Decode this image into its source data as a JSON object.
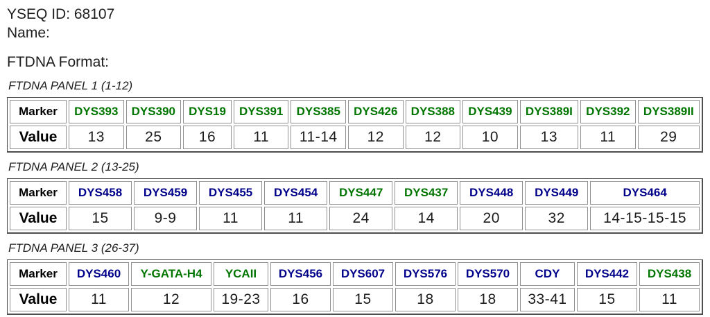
{
  "page": {
    "yseq_id": "YSEQ ID: 68107",
    "name": "Name:",
    "format_heading": "FTDNA Format:"
  },
  "table_headers": {
    "marker": "Marker",
    "value": "Value"
  },
  "colors": {
    "green_marker": "#007500",
    "blue_marker": "#00008B",
    "text": "#1e1e1e"
  },
  "panels": [
    {
      "title": "FTDNA PANEL 1 (1-12)",
      "markers": [
        {
          "name": "DYS393",
          "value": "13",
          "color": "green"
        },
        {
          "name": "DYS390",
          "value": "25",
          "color": "green"
        },
        {
          "name": "DYS19",
          "value": "16",
          "color": "green"
        },
        {
          "name": "DYS391",
          "value": "11",
          "color": "green"
        },
        {
          "name": "DYS385",
          "value": "11-14",
          "color": "green"
        },
        {
          "name": "DYS426",
          "value": "12",
          "color": "green"
        },
        {
          "name": "DYS388",
          "value": "12",
          "color": "green"
        },
        {
          "name": "DYS439",
          "value": "10",
          "color": "green"
        },
        {
          "name": "DYS389I",
          "value": "13",
          "color": "green"
        },
        {
          "name": "DYS392",
          "value": "11",
          "color": "green"
        },
        {
          "name": "DYS389II",
          "value": "29",
          "color": "green"
        }
      ]
    },
    {
      "title": "FTDNA PANEL 2 (13-25)",
      "markers": [
        {
          "name": "DYS458",
          "value": "15",
          "color": "blue"
        },
        {
          "name": "DYS459",
          "value": "9-9",
          "color": "blue"
        },
        {
          "name": "DYS455",
          "value": "11",
          "color": "blue"
        },
        {
          "name": "DYS454",
          "value": "11",
          "color": "blue"
        },
        {
          "name": "DYS447",
          "value": "24",
          "color": "green"
        },
        {
          "name": "DYS437",
          "value": "14",
          "color": "green"
        },
        {
          "name": "DYS448",
          "value": "20",
          "color": "blue"
        },
        {
          "name": "DYS449",
          "value": "32",
          "color": "blue"
        },
        {
          "name": "DYS464",
          "value": "14-15-15-15",
          "color": "blue"
        }
      ]
    },
    {
      "title": "FTDNA PANEL 3 (26-37)",
      "markers": [
        {
          "name": "DYS460",
          "value": "11",
          "color": "blue"
        },
        {
          "name": "Y-GATA-H4",
          "value": "12",
          "color": "green"
        },
        {
          "name": "YCAII",
          "value": "19-23",
          "color": "green"
        },
        {
          "name": "DYS456",
          "value": "16",
          "color": "blue"
        },
        {
          "name": "DYS607",
          "value": "15",
          "color": "blue"
        },
        {
          "name": "DYS576",
          "value": "18",
          "color": "blue"
        },
        {
          "name": "DYS570",
          "value": "18",
          "color": "blue"
        },
        {
          "name": "CDY",
          "value": "33-41",
          "color": "blue"
        },
        {
          "name": "DYS442",
          "value": "15",
          "color": "blue"
        },
        {
          "name": "DYS438",
          "value": "11",
          "color": "green"
        }
      ]
    }
  ]
}
